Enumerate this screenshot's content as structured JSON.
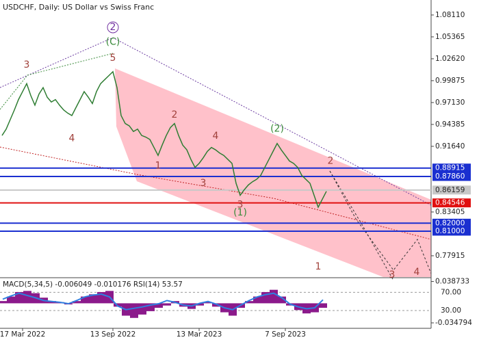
{
  "chart_data": {
    "type": "line",
    "title": "USDCHF, Daily:  US Dollar vs Swiss Franc",
    "ylim": [
      0.7525,
      1.0999
    ],
    "yticks": [
      {
        "value": 1.0811,
        "label": "1.08110"
      },
      {
        "value": 1.05365,
        "label": "1.05365"
      },
      {
        "value": 1.0262,
        "label": "1.02620"
      },
      {
        "value": 0.99875,
        "label": "0.99875"
      },
      {
        "value": 0.9713,
        "label": "0.97130"
      },
      {
        "value": 0.94385,
        "label": "0.94385"
      },
      {
        "value": 0.9164,
        "label": "0.91640"
      },
      {
        "value": 0.83405,
        "label": "0.83405"
      },
      {
        "value": 0.77915,
        "label": "0.77915"
      }
    ],
    "xticks": [
      {
        "value": 5,
        "label": "17 Mar 2022"
      },
      {
        "value": 27,
        "label": "13 Sep 2022"
      },
      {
        "value": 48,
        "label": "13 Mar 2023"
      },
      {
        "value": 69,
        "label": "7 Sep 2023"
      }
    ],
    "series": [
      {
        "name": "USDCHF",
        "color": "#2e7d32",
        "values": [
          0.93,
          0.938,
          0.95,
          0.962,
          0.975,
          0.985,
          0.995,
          0.98,
          0.968,
          0.982,
          0.99,
          0.978,
          0.972,
          0.975,
          0.968,
          0.962,
          0.958,
          0.955,
          0.965,
          0.975,
          0.985,
          0.978,
          0.97,
          0.985,
          0.995,
          1.0,
          1.005,
          1.01,
          0.99,
          0.955,
          0.945,
          0.942,
          0.935,
          0.938,
          0.93,
          0.928,
          0.925,
          0.915,
          0.905,
          0.918,
          0.93,
          0.94,
          0.945,
          0.93,
          0.918,
          0.912,
          0.9,
          0.89,
          0.895,
          0.902,
          0.91,
          0.915,
          0.912,
          0.908,
          0.905,
          0.9,
          0.895,
          0.87,
          0.855,
          0.862,
          0.868,
          0.872,
          0.875,
          0.88,
          0.89,
          0.9,
          0.91,
          0.92,
          0.912,
          0.905,
          0.898,
          0.895,
          0.89,
          0.88,
          0.875,
          0.87,
          0.855,
          0.84,
          0.85,
          0.86
        ]
      }
    ],
    "levels": [
      {
        "value": 0.88915,
        "label": "0.88915",
        "color": "#1a2fd0"
      },
      {
        "value": 0.8786,
        "label": "0.87860",
        "color": "#1a2fd0"
      },
      {
        "value": 0.86159,
        "label": "0.86159",
        "color": "#c8c8c8"
      },
      {
        "value": 0.84546,
        "label": "0.84546",
        "color": "#e01010"
      },
      {
        "value": 0.82,
        "label": "0.82000",
        "color": "#1a2fd0"
      },
      {
        "value": 0.81,
        "label": "0.81000",
        "color": "#1a2fd0"
      }
    ],
    "annotations": [
      {
        "label": "3",
        "x": 6,
        "y": 1.0184,
        "color": "#a0403a"
      },
      {
        "label": "5",
        "x": 27,
        "y": 1.027,
        "color": "#a0403a"
      },
      {
        "label": "(C)",
        "x": 27,
        "y": 1.047,
        "color": "#3a8a3a"
      },
      {
        "label": "2",
        "x": 27,
        "y": 1.0656,
        "color": "#7030a0"
      },
      {
        "label": "4",
        "x": 17,
        "y": 0.926,
        "color": "#a0403a"
      },
      {
        "label": "1",
        "x": 38,
        "y": 0.892,
        "color": "#a0403a"
      },
      {
        "label": "2",
        "x": 42,
        "y": 0.956,
        "color": "#a0403a"
      },
      {
        "label": "3",
        "x": 49,
        "y": 0.87,
        "color": "#a0403a"
      },
      {
        "label": "4",
        "x": 52,
        "y": 0.929,
        "color": "#a0403a"
      },
      {
        "label": "3",
        "x": 58,
        "y": 0.843,
        "color": "#a0403a"
      },
      {
        "label": "(1)",
        "x": 58,
        "y": 0.833,
        "color": "#3a8a3a"
      },
      {
        "label": "(2)",
        "x": 67,
        "y": 0.938,
        "color": "#3a8a3a"
      },
      {
        "label": "2",
        "x": 80,
        "y": 0.898,
        "color": "#a0403a"
      },
      {
        "label": "1",
        "x": 77,
        "y": 0.7654,
        "color": "#a0403a"
      },
      {
        "label": "4",
        "x": 101,
        "y": 0.7586,
        "color": "#a0403a"
      },
      {
        "label": "3",
        "x": 95,
        "y": 0.755,
        "color": "#a0403a"
      }
    ]
  },
  "indicator": {
    "label": "MACD(5,34,5) -0.006049 -0.010176 RSI(14) 53.57",
    "ylim": [
      -0.0445,
      0.0455
    ],
    "yticks": [
      0.038733,
      -0.034794
    ],
    "rsi_lim": [
      0,
      100
    ],
    "rsi_ticks": [
      {
        "value": 70,
        "label": "70.00"
      },
      {
        "value": 30,
        "label": "30.00"
      }
    ],
    "macd": {
      "color": "#8b1a8b",
      "values": [
        0.004,
        0.012,
        0.02,
        0.022,
        0.018,
        0.01,
        0.004,
        0.002,
        -0.002,
        0.004,
        0.012,
        0.016,
        0.02,
        0.022,
        -0.006,
        -0.022,
        -0.026,
        -0.02,
        -0.014,
        -0.008,
        -0.004,
        0.004,
        -0.006,
        -0.01,
        -0.004,
        0.002,
        -0.006,
        -0.016,
        -0.022,
        -0.008,
        0.004,
        0.012,
        0.02,
        0.024,
        0.012,
        -0.004,
        -0.012,
        -0.018,
        -0.016,
        -0.008
      ]
    },
    "rsi": {
      "color": "#2f7fe0",
      "values": [
        55,
        62,
        68,
        63,
        58,
        52,
        50,
        48,
        45,
        52,
        60,
        64,
        66,
        60,
        40,
        32,
        35,
        38,
        42,
        45,
        52,
        48,
        42,
        40,
        46,
        50,
        44,
        36,
        32,
        42,
        52,
        60,
        65,
        68,
        58,
        44,
        38,
        34,
        36,
        53.57
      ]
    }
  }
}
